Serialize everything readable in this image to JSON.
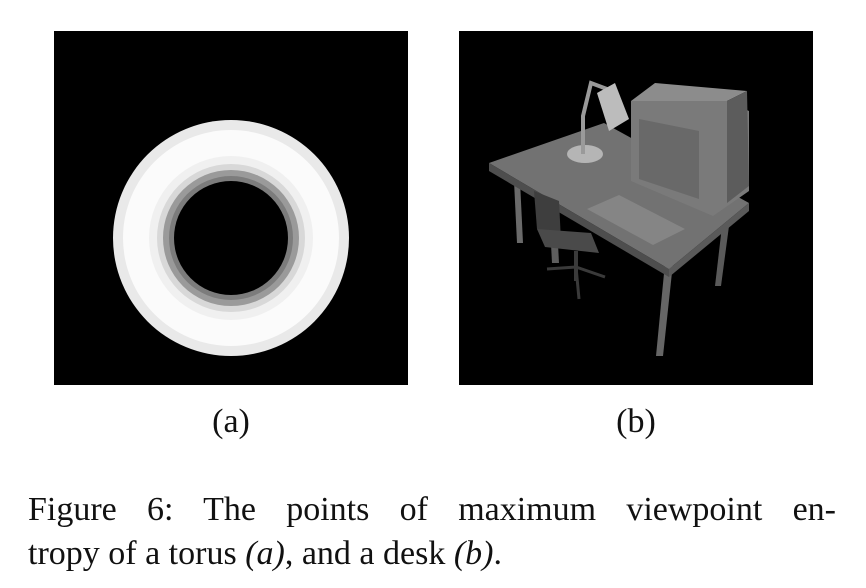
{
  "figure": {
    "panels": [
      {
        "id": "a",
        "label": "(a)",
        "subject": "torus"
      },
      {
        "id": "b",
        "label": "(b)",
        "subject": "desk"
      }
    ],
    "caption": {
      "line1": "Figure 6:  The points of maximum viewpoint en-",
      "line2_pre": "tropy of a torus ",
      "ref_a": "(a)",
      "line2_mid": ", and a desk ",
      "ref_b": "(b)",
      "line2_post": "."
    }
  },
  "colors": {
    "panel_background": "#000000",
    "torus_outer": "#f2f2f2",
    "torus_inner_shade": "#8a8a8a",
    "desk_gray": "#6e6e6e"
  }
}
